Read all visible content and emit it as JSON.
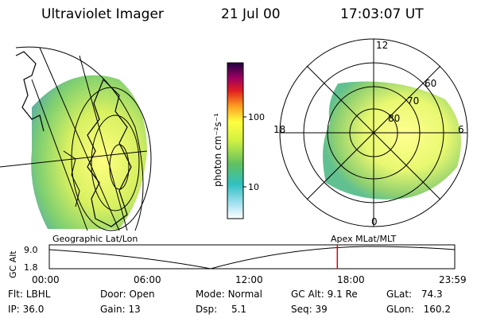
{
  "header": {
    "instrument": "Ultraviolet Imager",
    "date": "21 Jul 00",
    "time": "17:03:07 UT"
  },
  "colorbar": {
    "unit_label": "photon cm⁻²s⁻¹",
    "ticks": [
      "100",
      "10"
    ]
  },
  "polar_plot": {
    "mlt_labels": [
      "12",
      "18",
      "6",
      "0"
    ],
    "lat_labels": [
      "60",
      "70",
      "80"
    ]
  },
  "timeline": {
    "axis_title": "GC Alt",
    "left_label": "Geographic Lat/Lon",
    "right_label": "Apex MLat/MLT",
    "y_ticks": [
      "9.0",
      "1.8"
    ],
    "x_ticks": [
      "00:00",
      "06:00",
      "12:00",
      "18:00",
      "23:59"
    ],
    "marker_time_hours": 17.05
  },
  "status": {
    "flt_label": "Flt:",
    "flt_value": "LBHL",
    "ip_label": "IP:",
    "ip_value": "36.0",
    "door_label": "Door:",
    "door_value": "Open",
    "gain_label": "Gain:",
    "gain_value": "13",
    "mode_label": "Mode:",
    "mode_value": "Normal",
    "dsp_label": "Dsp:",
    "dsp_value": "5.1",
    "gcalt_label": "GC Alt:",
    "gcalt_value": "9.1 Re",
    "seq_label": "Seq:",
    "seq_value": "39",
    "glat_label": "GLat:",
    "glat_value": "74.3",
    "glon_label": "GLon:",
    "glon_value": "160.2"
  },
  "colors": {
    "marker": "#e00000",
    "aurora_high": "#ffff80",
    "aurora_mid": "#d8f060",
    "aurora_low": "#60c070"
  }
}
